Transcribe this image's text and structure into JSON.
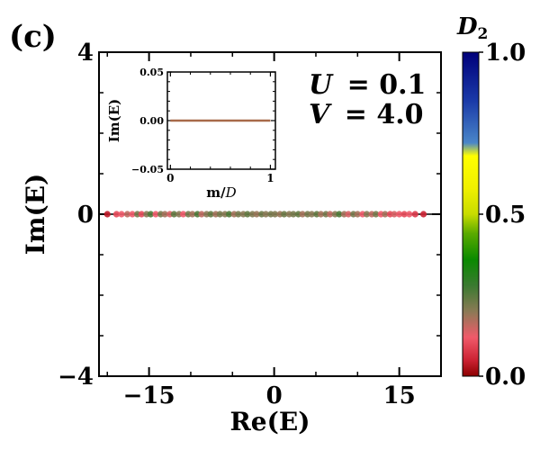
{
  "panel_label": "(c)",
  "params": {
    "u_symbol": "U",
    "u_value": "= 0.1",
    "v_symbol": "V",
    "v_value": "= 4.0"
  },
  "colorbar": {
    "label": "D",
    "label_sub": "2",
    "min": 0.0,
    "max": 1.0,
    "ticks": [
      "0.0",
      "0.5",
      "1.0"
    ],
    "tick_values": [
      0.0,
      0.5,
      1.0
    ],
    "stops": [
      {
        "v": 0.0,
        "color": "#8b0000"
      },
      {
        "v": 0.05,
        "color": "#cc2233"
      },
      {
        "v": 0.12,
        "color": "#f05a6a"
      },
      {
        "v": 0.2,
        "color": "#8b7a55"
      },
      {
        "v": 0.28,
        "color": "#3a7a30"
      },
      {
        "v": 0.36,
        "color": "#0a8a00"
      },
      {
        "v": 0.44,
        "color": "#5aaa00"
      },
      {
        "v": 0.5,
        "color": "#c8dc00"
      },
      {
        "v": 0.58,
        "color": "#f0f000"
      },
      {
        "v": 0.68,
        "color": "#ffff00"
      },
      {
        "v": 0.72,
        "color": "#4a86c8"
      },
      {
        "v": 0.85,
        "color": "#1a3aa8"
      },
      {
        "v": 1.0,
        "color": "#00007a"
      }
    ]
  },
  "chart_data": [
    {
      "type": "scatter",
      "name": "main",
      "title": "",
      "xlabel": "Re(E)",
      "ylabel": "Im(E)",
      "xlim": [
        -21,
        20
      ],
      "ylim": [
        -4,
        4
      ],
      "xticks": [
        -15,
        0,
        15
      ],
      "xtick_labels": [
        "−15",
        "0",
        "15"
      ],
      "yticks": [
        -4,
        0,
        4
      ],
      "ytick_labels": [
        "−4",
        "0",
        "4"
      ],
      "series": [
        {
          "name": "eigenvalues",
          "x": [
            -20.0,
            -18.9,
            -18.3,
            -17.6,
            -17.0,
            -16.4,
            -15.9,
            -15.3,
            -14.8,
            -14.2,
            -13.6,
            -13.1,
            -12.5,
            -12.0,
            -11.4,
            -10.9,
            -10.3,
            -9.8,
            -9.2,
            -8.7,
            -8.1,
            -7.6,
            -7.0,
            -6.5,
            -5.9,
            -5.4,
            -4.8,
            -4.3,
            -3.7,
            -3.2,
            -2.6,
            -2.1,
            -1.5,
            -1.0,
            -0.4,
            0.1,
            0.7,
            1.2,
            1.8,
            2.3,
            2.9,
            3.4,
            4.0,
            4.5,
            5.1,
            5.6,
            6.2,
            6.7,
            7.3,
            7.8,
            8.4,
            8.9,
            9.5,
            10.0,
            10.6,
            11.1,
            11.7,
            12.2,
            12.8,
            13.3,
            13.9,
            14.4,
            15.0,
            15.6,
            16.2,
            16.9,
            17.9
          ],
          "y": [
            0,
            0,
            0,
            0,
            0,
            0,
            0,
            0,
            0,
            0,
            0,
            0,
            0,
            0,
            0,
            0,
            0,
            0,
            0,
            0,
            0,
            0,
            0,
            0,
            0,
            0,
            0,
            0,
            0,
            0,
            0,
            0,
            0,
            0,
            0,
            0,
            0,
            0,
            0,
            0,
            0,
            0,
            0,
            0,
            0,
            0,
            0,
            0,
            0,
            0,
            0,
            0,
            0,
            0,
            0,
            0,
            0,
            0,
            0,
            0,
            0,
            0,
            0,
            0,
            0,
            0,
            0
          ],
          "color_value": [
            0.04,
            0.1,
            0.12,
            0.16,
            0.12,
            0.22,
            0.1,
            0.2,
            0.26,
            0.12,
            0.22,
            0.18,
            0.14,
            0.24,
            0.2,
            0.12,
            0.22,
            0.18,
            0.26,
            0.16,
            0.2,
            0.24,
            0.18,
            0.22,
            0.2,
            0.26,
            0.18,
            0.22,
            0.2,
            0.24,
            0.21,
            0.19,
            0.23,
            0.2,
            0.22,
            0.21,
            0.19,
            0.23,
            0.2,
            0.22,
            0.24,
            0.18,
            0.22,
            0.2,
            0.24,
            0.18,
            0.22,
            0.16,
            0.2,
            0.26,
            0.18,
            0.14,
            0.22,
            0.18,
            0.12,
            0.2,
            0.16,
            0.22,
            0.12,
            0.18,
            0.1,
            0.14,
            0.12,
            0.1,
            0.12,
            0.08,
            0.05
          ]
        }
      ]
    },
    {
      "type": "scatter",
      "name": "inset",
      "title": "",
      "xlabel": "m/",
      "xlabel_script": "D",
      "ylabel": "Im(E)",
      "xlim": [
        -0.03,
        1.05
      ],
      "ylim": [
        -0.05,
        0.05
      ],
      "xticks": [
        0,
        1
      ],
      "xtick_labels": [
        "0",
        "1"
      ],
      "yticks": [
        -0.05,
        0.0,
        0.05
      ],
      "ytick_labels": [
        "−0.05",
        "0.00",
        "0.05"
      ],
      "series": [
        {
          "name": "imaginary parts",
          "x_range": [
            0,
            1
          ],
          "y": 0.0,
          "color": "#a86a4a"
        }
      ]
    }
  ]
}
